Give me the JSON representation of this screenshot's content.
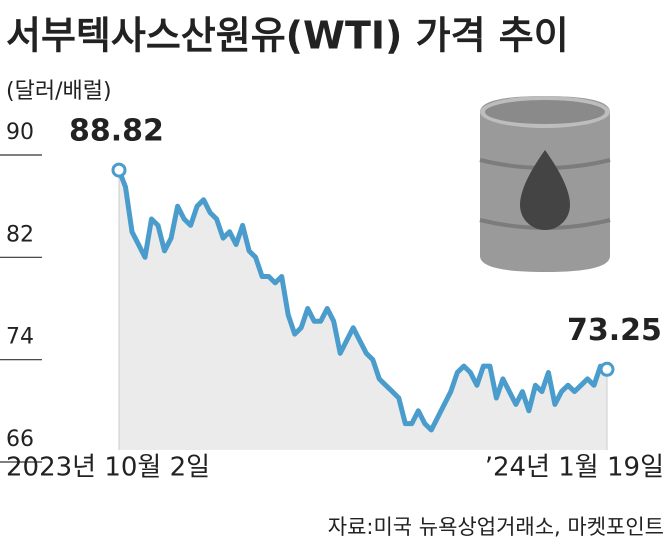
{
  "chart_data": {
    "type": "line",
    "title": "서부텍사스산원유(WTI) 가격 추이",
    "unit_label": "(달러/배럴)",
    "source": "자료:미국 뉴욕상업거래소, 마켓포인트",
    "categories": [
      "2023년 10월 2일",
      null,
      null,
      null,
      null,
      null,
      null,
      null,
      null,
      null,
      null,
      null,
      null,
      null,
      null,
      null,
      null,
      null,
      null,
      null,
      null,
      null,
      null,
      null,
      null,
      null,
      null,
      null,
      null,
      null,
      null,
      null,
      null,
      null,
      null,
      null,
      null,
      null,
      null,
      null,
      null,
      null,
      null,
      null,
      null,
      null,
      null,
      null,
      null,
      null,
      null,
      null,
      null,
      null,
      null,
      null,
      null,
      null,
      null,
      null,
      null,
      null,
      null,
      null,
      null,
      null,
      null,
      null,
      null,
      null,
      null,
      null,
      null,
      null,
      null,
      "’24년 1월 19일"
    ],
    "series": [
      {
        "name": "WTI",
        "color": "#4a9ccc",
        "values": [
          88.82,
          87.5,
          84,
          83,
          82,
          85,
          84.5,
          82.5,
          83.5,
          86,
          85,
          84.5,
          86,
          86.5,
          85.5,
          85,
          83.5,
          84,
          83,
          84.5,
          82.5,
          82,
          80.5,
          80.5,
          80,
          80.5,
          77.5,
          76,
          76.5,
          78,
          77,
          77,
          78,
          77,
          74.5,
          75.5,
          76.5,
          75.5,
          74.5,
          74,
          72.5,
          72,
          71.5,
          71,
          69,
          69,
          70,
          69,
          68.5,
          69.5,
          70.5,
          71.5,
          73,
          73.5,
          73,
          72,
          73.5,
          73.5,
          71,
          72.5,
          71.5,
          70.5,
          71.5,
          70,
          72,
          71.5,
          73,
          70.5,
          71.5,
          72,
          71.5,
          72,
          72.5,
          72,
          73.5,
          73.25
        ],
        "value_labels": [
          "88.82",
          null,
          null,
          null,
          null,
          null,
          null,
          null,
          null,
          null,
          null,
          null,
          null,
          null,
          null,
          null,
          null,
          null,
          null,
          null,
          null,
          null,
          null,
          null,
          null,
          null,
          null,
          null,
          null,
          null,
          null,
          null,
          null,
          null,
          null,
          null,
          null,
          null,
          null,
          null,
          null,
          null,
          null,
          null,
          null,
          null,
          null,
          null,
          null,
          null,
          null,
          null,
          null,
          null,
          null,
          null,
          null,
          null,
          null,
          null,
          null,
          null,
          null,
          null,
          null,
          null,
          null,
          null,
          null,
          null,
          null,
          null,
          null,
          null,
          null,
          "73.25"
        ]
      }
    ],
    "ylim": [
      66,
      90
    ],
    "yticks": [
      90,
      82,
      74,
      66
    ],
    "fill_color": "#ebebeb"
  }
}
